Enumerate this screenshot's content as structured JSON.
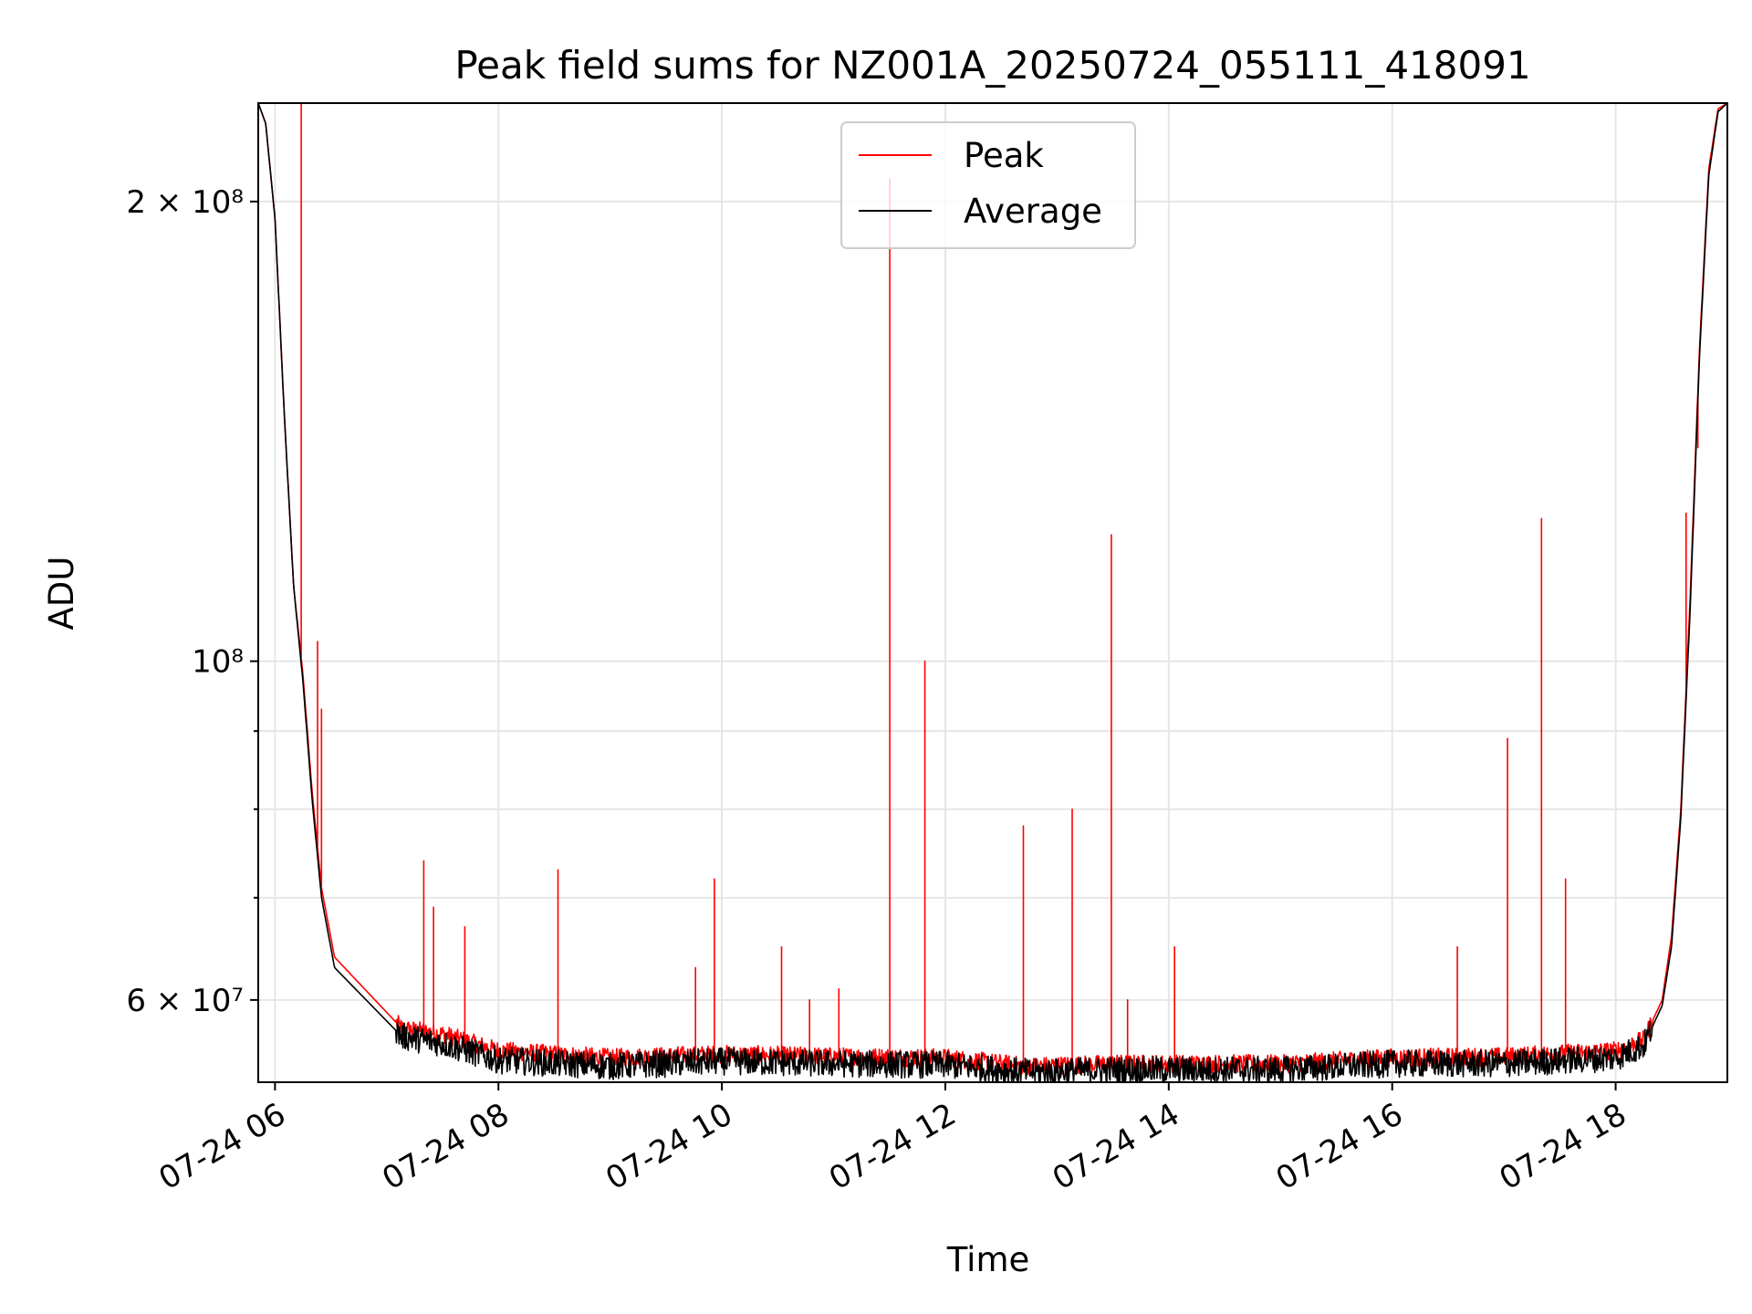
{
  "chart_data": {
    "type": "line",
    "title": "Peak field sums for NZ001A_20250724_055111_418091",
    "xlabel": "Time",
    "ylabel": "ADU",
    "x_scale": "time",
    "y_scale": "log",
    "xlim": [
      "2025-07-24 05:51",
      "2025-07-24 19:00"
    ],
    "ylim": [
      53000000,
      232000000
    ],
    "x_ticks": [
      {
        "value": "2025-07-24 06:00",
        "label": "07-24 06"
      },
      {
        "value": "2025-07-24 08:00",
        "label": "07-24 08"
      },
      {
        "value": "2025-07-24 10:00",
        "label": "07-24 10"
      },
      {
        "value": "2025-07-24 12:00",
        "label": "07-24 12"
      },
      {
        "value": "2025-07-24 14:00",
        "label": "07-24 14"
      },
      {
        "value": "2025-07-24 16:00",
        "label": "07-24 16"
      },
      {
        "value": "2025-07-24 18:00",
        "label": "07-24 18"
      }
    ],
    "y_major_ticks": [
      {
        "value": 60000000,
        "label": "6 × 10⁷"
      },
      {
        "value": 100000000,
        "label": "10⁸"
      },
      {
        "value": 200000000,
        "label": "2 × 10⁸"
      }
    ],
    "y_minor_ticks": [
      70000000,
      80000000,
      90000000
    ],
    "grid": true,
    "legend_position": "upper center",
    "series": [
      {
        "name": "Peak",
        "color": "#ff0000",
        "baseline": [
          [
            "2025-07-24 05:51",
            232000000
          ],
          [
            "2025-07-24 05:55",
            225000000
          ],
          [
            "2025-07-24 06:00",
            195000000
          ],
          [
            "2025-07-24 06:05",
            145000000
          ],
          [
            "2025-07-24 06:10",
            112000000
          ],
          [
            "2025-07-24 06:15",
            98000000
          ],
          [
            "2025-07-24 06:20",
            82000000
          ],
          [
            "2025-07-24 06:25",
            71000000
          ],
          [
            "2025-07-24 06:32",
            64000000
          ],
          [
            "2025-07-24 07:08",
            57500000
          ],
          [
            "2025-07-24 07:30",
            57000000
          ],
          [
            "2025-07-24 08:00",
            55600000
          ],
          [
            "2025-07-24 09:00",
            55000000
          ],
          [
            "2025-07-24 10:00",
            55300000
          ],
          [
            "2025-07-24 11:00",
            55100000
          ],
          [
            "2025-07-24 12:00",
            55000000
          ],
          [
            "2025-07-24 12:45",
            54300000
          ],
          [
            "2025-07-24 13:30",
            54500000
          ],
          [
            "2025-07-24 15:00",
            54500000
          ],
          [
            "2025-07-24 16:00",
            55000000
          ],
          [
            "2025-07-24 17:00",
            55100000
          ],
          [
            "2025-07-24 18:00",
            55600000
          ],
          [
            "2025-07-24 18:15",
            56500000
          ],
          [
            "2025-07-24 18:25",
            60000000
          ],
          [
            "2025-07-24 18:30",
            66000000
          ],
          [
            "2025-07-24 18:35",
            80000000
          ],
          [
            "2025-07-24 18:40",
            110000000
          ],
          [
            "2025-07-24 18:45",
            160000000
          ],
          [
            "2025-07-24 18:50",
            210000000
          ],
          [
            "2025-07-24 18:55",
            230000000
          ],
          [
            "2025-07-24 19:00",
            232000000
          ]
        ],
        "spikes": [
          [
            "2025-07-24 06:14",
            232000000
          ],
          [
            "2025-07-24 06:23",
            103000000
          ],
          [
            "2025-07-24 06:25",
            93000000
          ],
          [
            "2025-07-24 07:20",
            74000000
          ],
          [
            "2025-07-24 07:25",
            69000000
          ],
          [
            "2025-07-24 07:42",
            67000000
          ],
          [
            "2025-07-24 08:32",
            73000000
          ],
          [
            "2025-07-24 09:46",
            63000000
          ],
          [
            "2025-07-24 09:56",
            72000000
          ],
          [
            "2025-07-24 10:32",
            65000000
          ],
          [
            "2025-07-24 10:47",
            60000000
          ],
          [
            "2025-07-24 11:03",
            61000000
          ],
          [
            "2025-07-24 11:30",
            207000000
          ],
          [
            "2025-07-24 11:49",
            100000000
          ],
          [
            "2025-07-24 12:42",
            78000000
          ],
          [
            "2025-07-24 13:08",
            80000000
          ],
          [
            "2025-07-24 13:29",
            121000000
          ],
          [
            "2025-07-24 13:38",
            60000000
          ],
          [
            "2025-07-24 14:03",
            65000000
          ],
          [
            "2025-07-24 16:35",
            65000000
          ],
          [
            "2025-07-24 17:02",
            89000000
          ],
          [
            "2025-07-24 17:20",
            124000000
          ],
          [
            "2025-07-24 17:33",
            72000000
          ],
          [
            "2025-07-24 18:38",
            125000000
          ],
          [
            "2025-07-24 18:44",
            138000000
          ]
        ]
      },
      {
        "name": "Average",
        "color": "#000000",
        "baseline": [
          [
            "2025-07-24 05:51",
            232000000
          ],
          [
            "2025-07-24 05:55",
            225000000
          ],
          [
            "2025-07-24 06:00",
            195000000
          ],
          [
            "2025-07-24 06:05",
            145000000
          ],
          [
            "2025-07-24 06:10",
            112000000
          ],
          [
            "2025-07-24 06:15",
            97000000
          ],
          [
            "2025-07-24 06:20",
            81000000
          ],
          [
            "2025-07-24 06:25",
            70000000
          ],
          [
            "2025-07-24 06:32",
            63000000
          ],
          [
            "2025-07-24 07:08",
            56800000
          ],
          [
            "2025-07-24 07:30",
            56200000
          ],
          [
            "2025-07-24 08:00",
            54800000
          ],
          [
            "2025-07-24 09:00",
            54300000
          ],
          [
            "2025-07-24 10:00",
            54700000
          ],
          [
            "2025-07-24 11:00",
            54500000
          ],
          [
            "2025-07-24 12:00",
            54400000
          ],
          [
            "2025-07-24 12:45",
            53800000
          ],
          [
            "2025-07-24 13:30",
            54000000
          ],
          [
            "2025-07-24 15:00",
            54000000
          ],
          [
            "2025-07-24 16:00",
            54500000
          ],
          [
            "2025-07-24 17:00",
            54500000
          ],
          [
            "2025-07-24 18:00",
            55000000
          ],
          [
            "2025-07-24 18:15",
            56000000
          ],
          [
            "2025-07-24 18:25",
            59500000
          ],
          [
            "2025-07-24 18:30",
            65000000
          ],
          [
            "2025-07-24 18:35",
            79000000
          ],
          [
            "2025-07-24 18:40",
            108000000
          ],
          [
            "2025-07-24 18:45",
            158000000
          ],
          [
            "2025-07-24 18:50",
            208000000
          ],
          [
            "2025-07-24 18:55",
            229000000
          ],
          [
            "2025-07-24 19:00",
            232000000
          ]
        ]
      }
    ]
  }
}
